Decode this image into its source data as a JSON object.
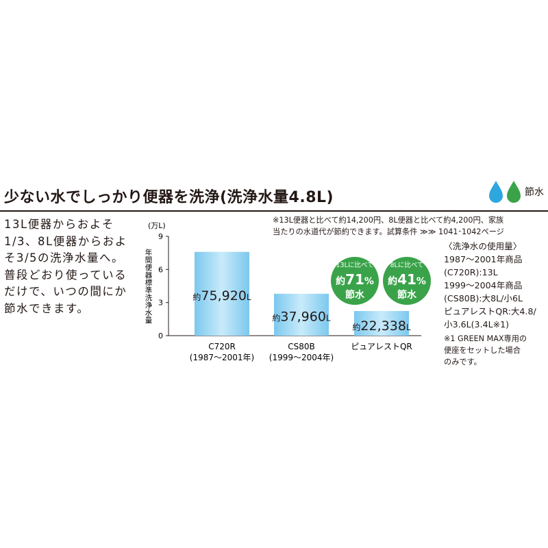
{
  "heading": {
    "title": "少ない水でしっかり便器を洗浄(洗浄水量4.8L)",
    "badge_label": "節水",
    "drop_colors": [
      "#2ea7e0",
      "#3aa34a"
    ],
    "badge_icon": "water-drops-icon"
  },
  "intro_lines": [
    "13L便器からおよそ",
    "1/3、8L便器からおよ",
    "そ3/5の洗浄水量へ。",
    "普段どおり使っている",
    "だけで、いつの間にか",
    "節水できます。"
  ],
  "top_note_lines": [
    "※13L便器と比べて約14,200円、8L便器と比べて約4,200円、家族",
    "当たりの水道代が節約できます。試算条件 ≫≫ 1041･1042ページ"
  ],
  "usage_note_lines": [
    "〈洗浄水の使用量〉",
    "1987～2001年商品",
    "(C720R):13L",
    "1999～2004年商品",
    "(CS80B):大8L/小6L",
    "ピュアレストQR:大4.8/",
    "小3.6L(3.4L※1)"
  ],
  "footnote_lines": [
    "※1 GREEN MAX専用の",
    "便座をセットした場合",
    "のみです。"
  ],
  "chart_data": {
    "type": "bar",
    "unit": "(万L)",
    "ylabel": "年間便器標準洗浄水量",
    "ylim": [
      0,
      9
    ],
    "yticks": [
      0,
      3,
      6,
      9
    ],
    "grid": false,
    "categories": [
      {
        "name": "C720R",
        "period": "(1987～2001年)"
      },
      {
        "name": "CS80B",
        "period": "(1999～2004年)"
      },
      {
        "name": "ピュアレストQR",
        "period": ""
      }
    ],
    "values": [
      7.592,
      3.796,
      2.2338
    ],
    "value_labels": [
      {
        "prefix": "約",
        "number": "75,920",
        "unit": "L"
      },
      {
        "prefix": "約",
        "number": "37,960",
        "unit": "L"
      },
      {
        "prefix": "約",
        "number": "22,338",
        "unit": "L"
      }
    ],
    "bar_color": "#a6dcf5",
    "bar_edge_color": "#7cc8ee",
    "callouts": [
      {
        "top": "13Lに比べて",
        "middle_prefix": "約",
        "middle_value": "71",
        "middle_suffix": "%",
        "bottom": "節水",
        "color": "#3aa34a"
      },
      {
        "top": "8Lに比べて",
        "middle_prefix": "約",
        "middle_value": "41",
        "middle_suffix": "%",
        "bottom": "節水",
        "color": "#3aa34a"
      }
    ]
  }
}
